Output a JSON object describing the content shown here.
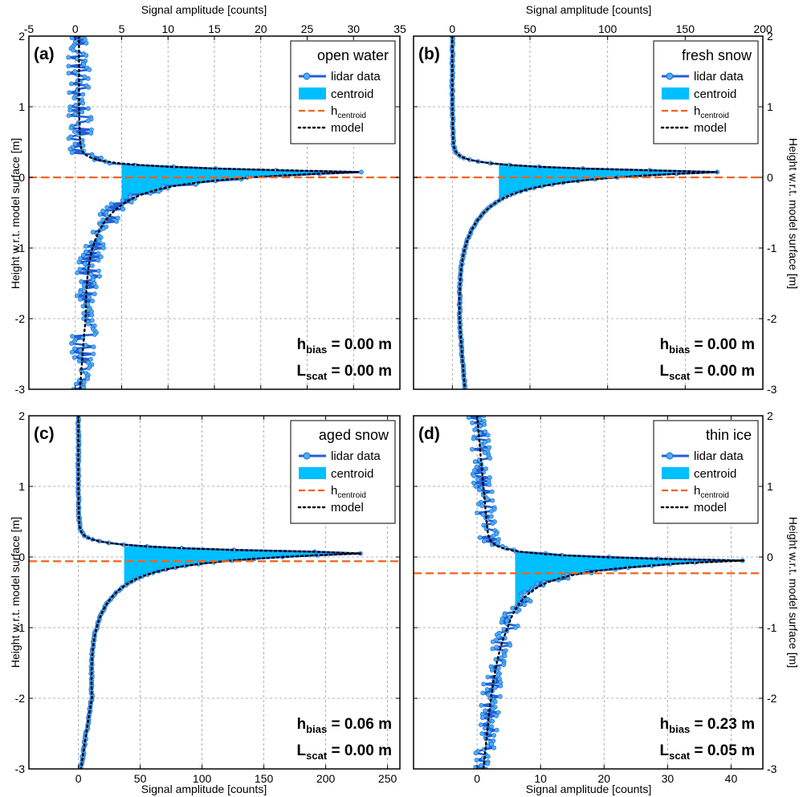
{
  "figure": {
    "top_xlabel": "Signal amplitude [counts]",
    "bottom_xlabel": "Signal amplitude [counts]",
    "ylabel": "Height w.r.t. model surface [m]"
  },
  "legend_entries": {
    "lidar": "lidar data",
    "centroid": "centroid",
    "hcent_main": "h",
    "hcent_sub": "centroid",
    "model": "model"
  },
  "colors": {
    "lidar_line": "#1f5fd6",
    "lidar_marker": "#4ab0ee",
    "centroid_fill": "#00bfff",
    "hcentroid_line": "#f0641e",
    "model_line": "#000000",
    "grid": "#9a9a9a"
  },
  "chart_data": [
    {
      "type": "line",
      "panel_label": "(a)",
      "title": "open water",
      "xlim": [
        -5,
        35
      ],
      "xticks": [
        -5,
        0,
        5,
        10,
        15,
        20,
        25,
        30,
        35
      ],
      "ylim": [
        -3,
        2
      ],
      "yticks": [
        -3,
        -2,
        -1,
        0,
        1,
        2
      ],
      "grid": true,
      "legend_position": "top-right",
      "peak_height": 0.08,
      "peak_amplitude": 31,
      "h_centroid": 0.0,
      "centroid_base_amplitude": 5,
      "noise_level": 1.3,
      "background": [
        0.4,
        0.4,
        0.6,
        0.8,
        1.0,
        0.5
      ],
      "stats": {
        "h_bias_label": "h",
        "h_bias_sub": "bias",
        "h_bias_value": "= 0.00 m",
        "l_scat_label": "L",
        "l_scat_sub": "scat",
        "l_scat_value": "= 0.00 m"
      }
    },
    {
      "type": "line",
      "panel_label": "(b)",
      "title": "fresh snow",
      "xlim": [
        -25,
        200
      ],
      "xticks": [
        0,
        50,
        100,
        150,
        200
      ],
      "ylim": [
        -3,
        2
      ],
      "yticks": [
        -3,
        -2,
        -1,
        0,
        1,
        2
      ],
      "grid": true,
      "legend_position": "top-right",
      "peak_height": 0.08,
      "peak_amplitude": 176,
      "h_centroid": 0.0,
      "centroid_base_amplitude": 30,
      "noise_level": 0.4,
      "background": [
        0,
        0,
        1,
        2,
        4,
        8
      ],
      "stats": {
        "h_bias_label": "h",
        "h_bias_sub": "bias",
        "h_bias_value": "= 0.00 m",
        "l_scat_label": "L",
        "l_scat_sub": "scat",
        "l_scat_value": "= 0.00 m"
      }
    },
    {
      "type": "line",
      "panel_label": "(c)",
      "title": "aged snow",
      "xlim": [
        -40,
        260
      ],
      "xticks": [
        0,
        50,
        100,
        150,
        200,
        250
      ],
      "ylim": [
        -3,
        2
      ],
      "yticks": [
        -3,
        -2,
        -1,
        0,
        1,
        2
      ],
      "grid": true,
      "legend_position": "top-right",
      "peak_height": 0.06,
      "peak_amplitude": 244,
      "h_centroid": -0.06,
      "centroid_base_amplitude": 37,
      "noise_level": 0.6,
      "background": [
        0,
        0,
        1,
        6,
        10,
        2
      ],
      "stats": {
        "h_bias_label": "h",
        "h_bias_sub": "bias",
        "h_bias_value": "= 0.06 m",
        "l_scat_label": "L",
        "l_scat_sub": "scat",
        "l_scat_value": "= 0.00 m"
      }
    },
    {
      "type": "line",
      "panel_label": "(d)",
      "title": "thin ice",
      "xlim": [
        -10,
        45
      ],
      "xticks": [
        0,
        10,
        20,
        30,
        40
      ],
      "ylim": [
        -3,
        2
      ],
      "yticks": [
        -3,
        -2,
        -1,
        0,
        1,
        2
      ],
      "grid": true,
      "legend_position": "top-right",
      "peak_height": -0.05,
      "peak_amplitude": 40,
      "h_centroid": -0.23,
      "centroid_base_amplitude": 6,
      "noise_level": 1.5,
      "background": [
        0,
        1,
        2,
        3,
        2,
        1
      ],
      "stats": {
        "h_bias_label": "h",
        "h_bias_sub": "bias",
        "h_bias_value": "= 0.23 m",
        "l_scat_label": "L",
        "l_scat_sub": "scat",
        "l_scat_value": "= 0.05 m"
      }
    }
  ]
}
